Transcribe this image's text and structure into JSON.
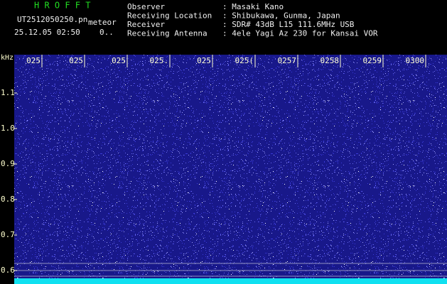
{
  "header": {
    "app": "H R O F F T",
    "file": "UT2512050250.pn",
    "tag": "meteor",
    "datetime": "25.12.05 02:50",
    "counter": "0..",
    "fields": [
      {
        "label": "Observer",
        "value": ": Masaki Kano"
      },
      {
        "label": "Receiving Location",
        "value": ": Shibukawa, Gunma, Japan"
      },
      {
        "label": "Receiver",
        "value": ": SDR# 43dB L15 111.6MHz USB"
      },
      {
        "label": "Receiving Antenna",
        "value": ": 4ele Yagi Az 230 for Kansai VOR"
      }
    ]
  },
  "axis": {
    "unit": "kHz",
    "y_labels": [
      "1.1",
      "1.0",
      "0.9",
      "0.8",
      "0.7",
      "0.6"
    ],
    "x_labels": [
      "025",
      "025",
      "025",
      "025.",
      "025",
      "025(",
      "0257",
      "0258",
      "0259",
      "0300"
    ]
  }
}
